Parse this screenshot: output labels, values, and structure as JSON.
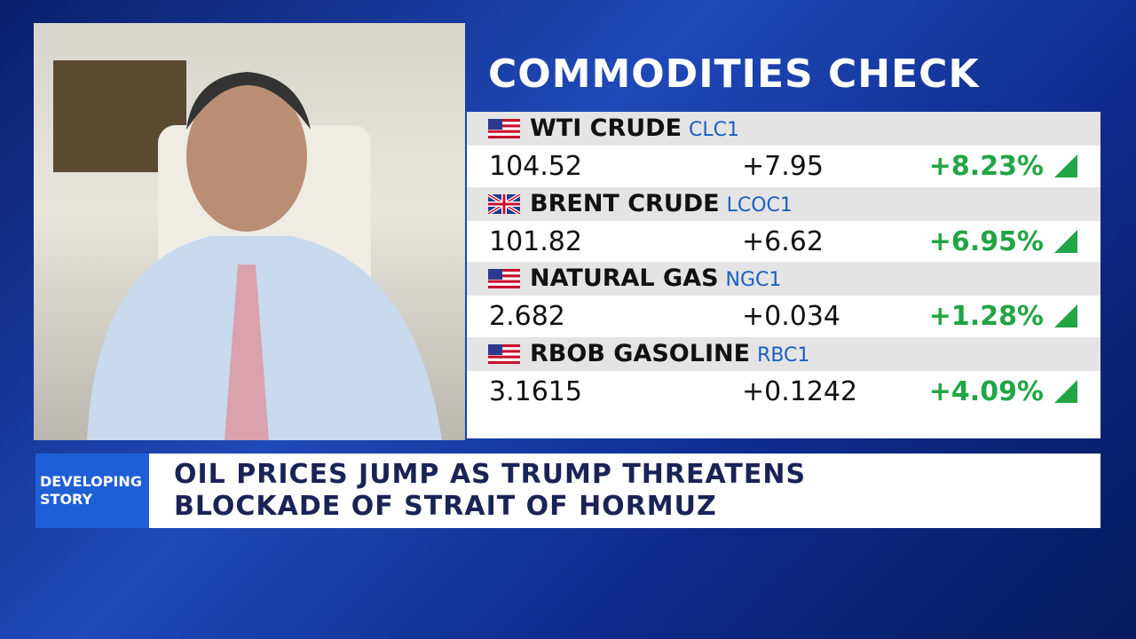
{
  "title": "COMMODITIES CHECK",
  "table": {
    "rows": [
      {
        "name": "WTI CRUDE",
        "ticker": "CLC1",
        "price": "104.52",
        "change": "+7.95",
        "percent": "+8.23%"
      },
      {
        "name": "BRENT CRUDE",
        "ticker": "LCOC1",
        "price": "101.82",
        "change": "+6.62",
        "percent": "+6.95%"
      },
      {
        "name": "NATURAL GAS",
        "ticker": "NGC1",
        "price": "2.682",
        "change": "+0.034",
        "percent": "+1.28%"
      },
      {
        "name": "RBOB GASOLINE",
        "ticker": "RBC1",
        "price": "3.1615",
        "change": "+0.1242",
        "percent": "+4.09%"
      }
    ]
  },
  "banner": {
    "label": [
      "DEVELOPING",
      "STORY"
    ],
    "headline": [
      "OIL PRICES JUMP AS TRUMP THREATENS",
      "BLOCKADE OF STRAIT OF HORMUZ"
    ]
  }
}
